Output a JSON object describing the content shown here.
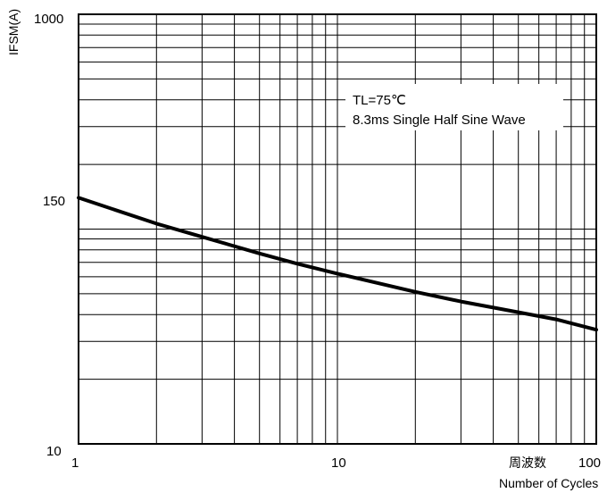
{
  "chart_data": {
    "type": "line",
    "title": "",
    "xlabel": "Number of Cycles",
    "xlabel_cn": "周波数",
    "ylabel": "IFSM(A)",
    "xscale": "log",
    "yscale": "log",
    "xlim": [
      1,
      100
    ],
    "ylim": [
      10,
      1000
    ],
    "x_ticks": [
      "1",
      "10",
      "100"
    ],
    "y_ticks": [
      "10",
      "150",
      "1000"
    ],
    "grid": true,
    "annotation": {
      "lines": [
        "TL=75℃",
        "8.3ms Single Half Sine Wave"
      ],
      "placement": "upper-right"
    },
    "series": [
      {
        "x": [
          1,
          2,
          3,
          5,
          7,
          10,
          20,
          30,
          50,
          70,
          100
        ],
        "y": [
          140,
          106,
          92,
          77,
          69,
          62,
          51,
          46,
          41,
          38,
          34
        ]
      }
    ]
  }
}
